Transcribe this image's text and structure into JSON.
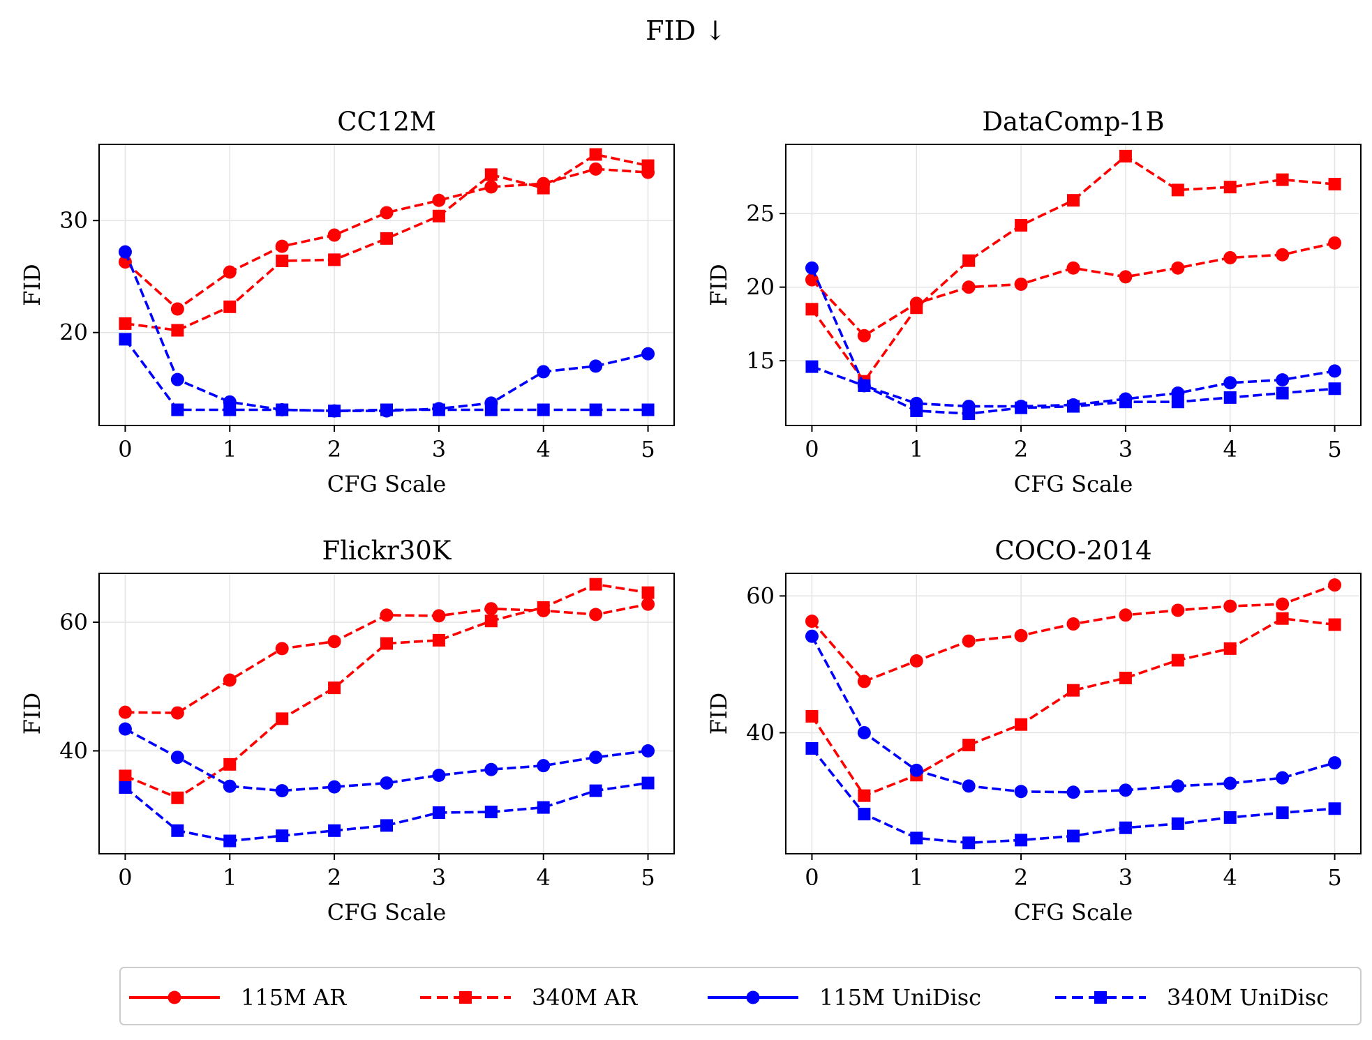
{
  "suptitle": "FID ↓",
  "legend": {
    "placement": "bottom-center",
    "entries": [
      {
        "label": "115M AR",
        "color": "#ff0000",
        "marker": "circle",
        "linestyle": "solid"
      },
      {
        "label": "340M AR",
        "color": "#ff0000",
        "marker": "square",
        "linestyle": "dashed"
      },
      {
        "label": "115M UniDisc",
        "color": "#0000ff",
        "marker": "circle",
        "linestyle": "solid"
      },
      {
        "label": "340M UniDisc",
        "color": "#0000ff",
        "marker": "square",
        "linestyle": "dashed"
      }
    ]
  },
  "chart_data": [
    {
      "type": "line",
      "title": "CC12M",
      "xlabel": "CFG Scale",
      "ylabel": "FID",
      "xlim": [
        -0.25,
        5.25
      ],
      "ylim": [
        11.7,
        36.8
      ],
      "xticks": [
        0,
        1,
        2,
        3,
        4,
        5
      ],
      "yticks": [
        20,
        30
      ],
      "grid": true,
      "x": [
        0,
        0.5,
        1,
        1.5,
        2,
        2.5,
        3,
        3.5,
        4,
        4.5,
        5
      ],
      "series": [
        {
          "name": "115M AR",
          "values": [
            26.3,
            22.1,
            25.4,
            27.7,
            28.7,
            30.7,
            31.8,
            33.0,
            33.3,
            34.6,
            34.3
          ]
        },
        {
          "name": "340M AR",
          "values": [
            20.8,
            20.2,
            22.3,
            26.4,
            26.5,
            28.4,
            30.4,
            34.1,
            32.9,
            35.9,
            34.9
          ]
        },
        {
          "name": "115M UniDisc",
          "values": [
            27.2,
            15.8,
            13.8,
            13.1,
            13.0,
            13.0,
            13.2,
            13.7,
            16.5,
            17.0,
            18.1
          ]
        },
        {
          "name": "340M UniDisc",
          "values": [
            19.4,
            13.1,
            13.1,
            13.1,
            13.0,
            13.1,
            13.1,
            13.1,
            13.1,
            13.1,
            13.1
          ]
        }
      ]
    },
    {
      "type": "line",
      "title": "DataComp-1B",
      "xlabel": "CFG Scale",
      "ylabel": "FID",
      "xlim": [
        -0.25,
        5.25
      ],
      "ylim": [
        10.6,
        29.7
      ],
      "xticks": [
        0,
        1,
        2,
        3,
        4,
        5
      ],
      "yticks": [
        15,
        20,
        25
      ],
      "grid": true,
      "x": [
        0,
        0.5,
        1,
        1.5,
        2,
        2.5,
        3,
        3.5,
        4,
        4.5,
        5
      ],
      "series": [
        {
          "name": "115M AR",
          "values": [
            20.5,
            16.7,
            18.9,
            20.0,
            20.2,
            21.3,
            20.7,
            21.3,
            22.0,
            22.2,
            23.0
          ]
        },
        {
          "name": "340M AR",
          "values": [
            18.5,
            13.6,
            18.6,
            21.8,
            24.2,
            25.9,
            28.9,
            26.6,
            26.8,
            27.3,
            27.0
          ]
        },
        {
          "name": "115M UniDisc",
          "values": [
            21.3,
            13.3,
            12.1,
            11.9,
            11.9,
            12.0,
            12.4,
            12.8,
            13.5,
            13.7,
            14.3
          ]
        },
        {
          "name": "340M UniDisc",
          "values": [
            14.6,
            13.3,
            11.6,
            11.4,
            11.8,
            11.9,
            12.2,
            12.2,
            12.5,
            12.8,
            13.1
          ]
        }
      ]
    },
    {
      "type": "line",
      "title": "Flickr30K",
      "xlabel": "CFG Scale",
      "ylabel": "FID",
      "xlim": [
        -0.25,
        5.25
      ],
      "ylim": [
        24.0,
        67.6
      ],
      "xticks": [
        0,
        1,
        2,
        3,
        4,
        5
      ],
      "yticks": [
        40,
        60
      ],
      "grid": true,
      "x": [
        0,
        0.5,
        1,
        1.5,
        2,
        2.5,
        3,
        3.5,
        4,
        4.5,
        5
      ],
      "series": [
        {
          "name": "115M AR",
          "values": [
            46.0,
            45.9,
            51.0,
            55.9,
            57.0,
            61.1,
            61.0,
            62.1,
            61.8,
            61.2,
            62.8
          ]
        },
        {
          "name": "340M AR",
          "values": [
            36.1,
            32.7,
            37.9,
            45.0,
            49.8,
            56.7,
            57.2,
            60.2,
            62.3,
            65.9,
            64.6
          ]
        },
        {
          "name": "115M UniDisc",
          "values": [
            43.4,
            39.0,
            34.5,
            33.8,
            34.4,
            35.0,
            36.2,
            37.1,
            37.7,
            39.0,
            40.0
          ]
        },
        {
          "name": "340M UniDisc",
          "values": [
            34.3,
            27.6,
            26.0,
            26.8,
            27.6,
            28.4,
            30.4,
            30.5,
            31.2,
            33.8,
            35.0
          ]
        }
      ]
    },
    {
      "type": "line",
      "title": "COCO-2014",
      "xlabel": "CFG Scale",
      "ylabel": "FID",
      "xlim": [
        -0.25,
        5.25
      ],
      "ylim": [
        22.3,
        63.3
      ],
      "xticks": [
        0,
        1,
        2,
        3,
        4,
        5
      ],
      "yticks": [
        40,
        60
      ],
      "grid": true,
      "x": [
        0,
        0.5,
        1,
        1.5,
        2,
        2.5,
        3,
        3.5,
        4,
        4.5,
        5
      ],
      "series": [
        {
          "name": "115M AR",
          "values": [
            56.3,
            47.5,
            50.5,
            53.4,
            54.2,
            55.9,
            57.2,
            57.9,
            58.5,
            58.8,
            61.6
          ]
        },
        {
          "name": "340M AR",
          "values": [
            42.4,
            30.8,
            33.8,
            38.2,
            41.2,
            46.2,
            48.0,
            50.6,
            52.3,
            56.7,
            55.8
          ]
        },
        {
          "name": "115M UniDisc",
          "values": [
            54.1,
            40.0,
            34.5,
            32.2,
            31.4,
            31.3,
            31.6,
            32.2,
            32.6,
            33.4,
            35.6
          ]
        },
        {
          "name": "340M UniDisc",
          "values": [
            37.7,
            28.1,
            24.6,
            23.9,
            24.3,
            24.9,
            26.1,
            26.7,
            27.6,
            28.3,
            28.9
          ]
        }
      ]
    }
  ]
}
